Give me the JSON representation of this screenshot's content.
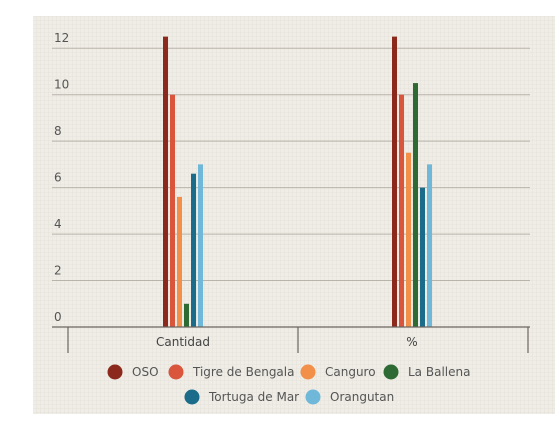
{
  "chart_data": {
    "type": "bar",
    "categories": [
      "Cantidad",
      "%"
    ],
    "series": [
      {
        "name": "OSO",
        "values": [
          12.5,
          12.5
        ],
        "color": "#8b2a1c"
      },
      {
        "name": "Tigre de Bengala",
        "values": [
          10,
          10
        ],
        "color": "#d9553b"
      },
      {
        "name": "Canguro",
        "values": [
          5.6,
          7.5
        ],
        "color": "#f2904a"
      },
      {
        "name": "La Ballena",
        "values": [
          1,
          10.5
        ],
        "color": "#2e6b34"
      },
      {
        "name": "Tortuga de Mar",
        "values": [
          6.6,
          6
        ],
        "color": "#1b6b8a"
      },
      {
        "name": "Orangutan",
        "values": [
          7,
          7
        ],
        "color": "#6fb8d9"
      }
    ],
    "yticks": [
      "0",
      "2",
      "4",
      "6",
      "8",
      "10",
      "12"
    ],
    "ylim": [
      0,
      13
    ],
    "grid": true,
    "legend_position": "bottom",
    "background": "#efede6",
    "gridline_color": "#b9b4aa"
  }
}
